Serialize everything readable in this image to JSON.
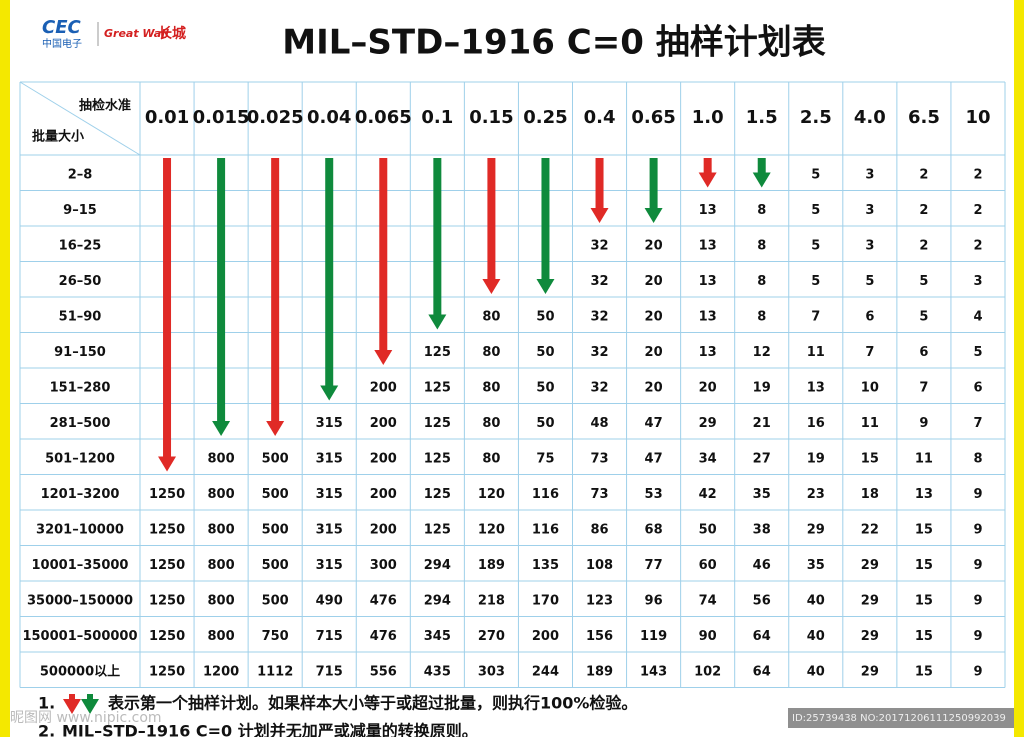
{
  "logo": {
    "cec": "CEC",
    "cec_sub": "中国电子",
    "brand": "Great Wall",
    "brand_cn": "长城"
  },
  "header": {
    "title": "MIL–STD–1916  C=0 抽样计划表"
  },
  "table": {
    "corner_top": "抽检水准",
    "corner_bottom": "批量大小",
    "columns": [
      "0.01",
      "0.015",
      "0.025",
      "0.04",
      "0.065",
      "0.1",
      "0.15",
      "0.25",
      "0.4",
      "0.65",
      "1.0",
      "1.5",
      "2.5",
      "4.0",
      "6.5",
      "10"
    ],
    "row_labels": [
      "2–8",
      "9–15",
      "16–25",
      "26–50",
      "51–90",
      "91–150",
      "151–280",
      "281–500",
      "501–1200",
      "1201–3200",
      "3201–10000",
      "10001–35000",
      "35000–150000",
      "150001–500000",
      "500000以上"
    ],
    "rows": [
      [
        null,
        null,
        null,
        null,
        null,
        null,
        null,
        null,
        null,
        null,
        null,
        null,
        5,
        3,
        2,
        2
      ],
      [
        null,
        null,
        null,
        null,
        null,
        null,
        null,
        null,
        null,
        null,
        13,
        8,
        5,
        3,
        2,
        2
      ],
      [
        null,
        null,
        null,
        null,
        null,
        null,
        null,
        null,
        32,
        20,
        13,
        8,
        5,
        3,
        2,
        2
      ],
      [
        null,
        null,
        null,
        null,
        null,
        null,
        null,
        null,
        32,
        20,
        13,
        8,
        5,
        5,
        5,
        3
      ],
      [
        null,
        null,
        null,
        null,
        null,
        null,
        80,
        50,
        32,
        20,
        13,
        8,
        7,
        6,
        5,
        4
      ],
      [
        null,
        null,
        null,
        null,
        null,
        125,
        80,
        50,
        32,
        20,
        13,
        12,
        11,
        7,
        6,
        5
      ],
      [
        null,
        null,
        null,
        null,
        200,
        125,
        80,
        50,
        32,
        20,
        20,
        19,
        13,
        10,
        7,
        6
      ],
      [
        null,
        null,
        null,
        315,
        200,
        125,
        80,
        50,
        48,
        47,
        29,
        21,
        16,
        11,
        9,
        7
      ],
      [
        null,
        800,
        500,
        315,
        200,
        125,
        80,
        75,
        73,
        47,
        34,
        27,
        19,
        15,
        11,
        8
      ],
      [
        1250,
        800,
        500,
        315,
        200,
        125,
        120,
        116,
        73,
        53,
        42,
        35,
        23,
        18,
        13,
        9
      ],
      [
        1250,
        800,
        500,
        315,
        200,
        125,
        120,
        116,
        86,
        68,
        50,
        38,
        29,
        22,
        15,
        9
      ],
      [
        1250,
        800,
        500,
        315,
        300,
        294,
        189,
        135,
        108,
        77,
        60,
        46,
        35,
        29,
        15,
        9
      ],
      [
        1250,
        800,
        500,
        490,
        476,
        294,
        218,
        170,
        123,
        96,
        74,
        56,
        40,
        29,
        15,
        9
      ],
      [
        1250,
        800,
        750,
        715,
        476,
        345,
        270,
        200,
        156,
        119,
        90,
        64,
        40,
        29,
        15,
        9
      ],
      [
        1250,
        1200,
        1112,
        715,
        556,
        435,
        303,
        244,
        189,
        143,
        102,
        64,
        40,
        29,
        15,
        9
      ]
    ]
  },
  "notes": [
    {
      "number": "1.",
      "text": "表示第一个抽样计划。如果样本大小等于或超过批量，则执行100%检验。"
    },
    {
      "number": "2.",
      "text": "MIL–STD–1916 C=0 计划并无加严或减量的转换原则。"
    }
  ],
  "watermark": {
    "site": "昵图网 www.nipic.com",
    "id": "ID:25739438 NO:20171206111250992039"
  }
}
